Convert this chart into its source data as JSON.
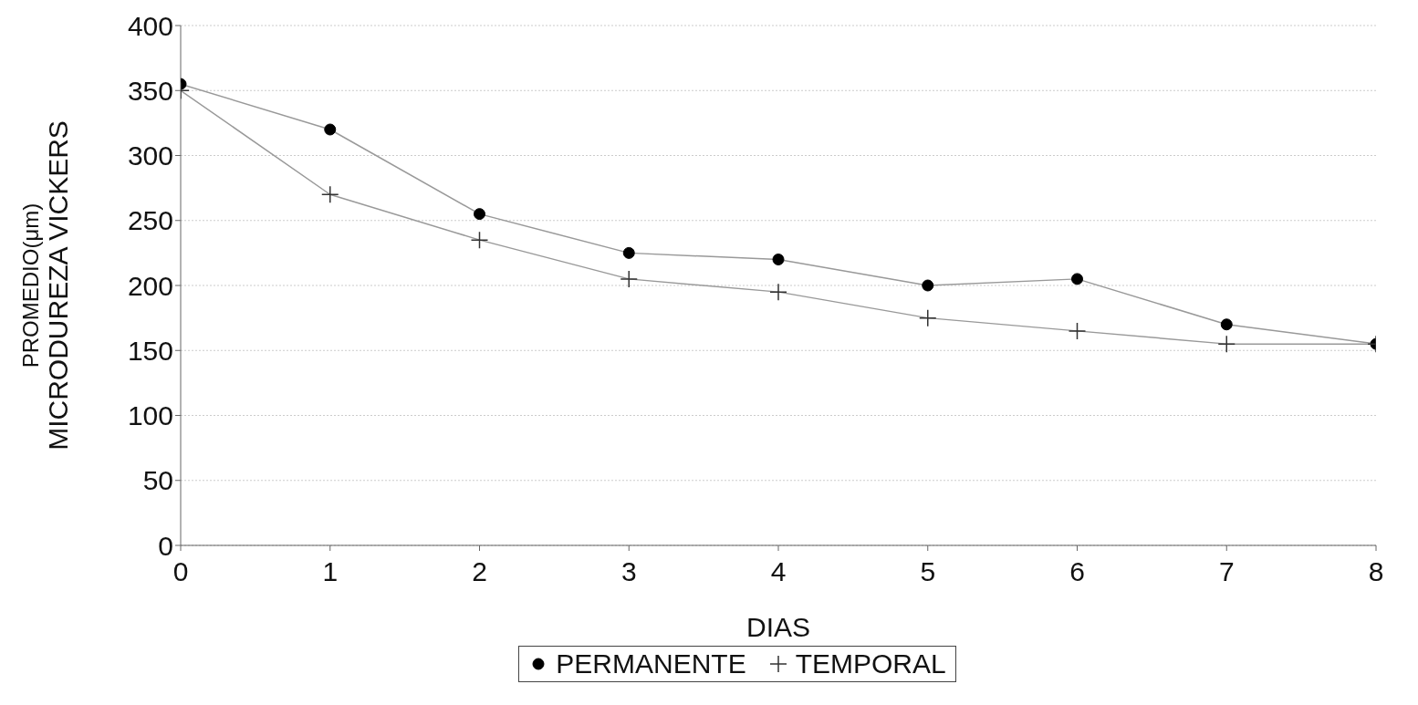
{
  "chart_data": {
    "type": "line",
    "xlabel": "DIAS",
    "ylabel": "PROMEDIO(μm)\nMICRODUREZA VICKERS",
    "x": [
      0,
      1,
      2,
      3,
      4,
      5,
      6,
      7,
      8
    ],
    "series": [
      {
        "name": "PERMANENTE",
        "color": "#000000",
        "marker": "circle",
        "values": [
          355,
          320,
          255,
          225,
          220,
          200,
          205,
          170,
          155
        ]
      },
      {
        "name": "TEMPORAL",
        "color": "#333333",
        "marker": "cross",
        "values": [
          350,
          270,
          235,
          205,
          195,
          175,
          165,
          155,
          155
        ]
      }
    ],
    "xlim": [
      0,
      8
    ],
    "xticks": [
      0,
      1,
      2,
      3,
      4,
      5,
      6,
      7,
      8
    ],
    "ylim": [
      0,
      400
    ],
    "yticks": [
      0,
      50,
      100,
      150,
      200,
      250,
      300,
      350,
      400
    ],
    "grid": "y",
    "legend": "bottom",
    "line_style": "solid"
  }
}
